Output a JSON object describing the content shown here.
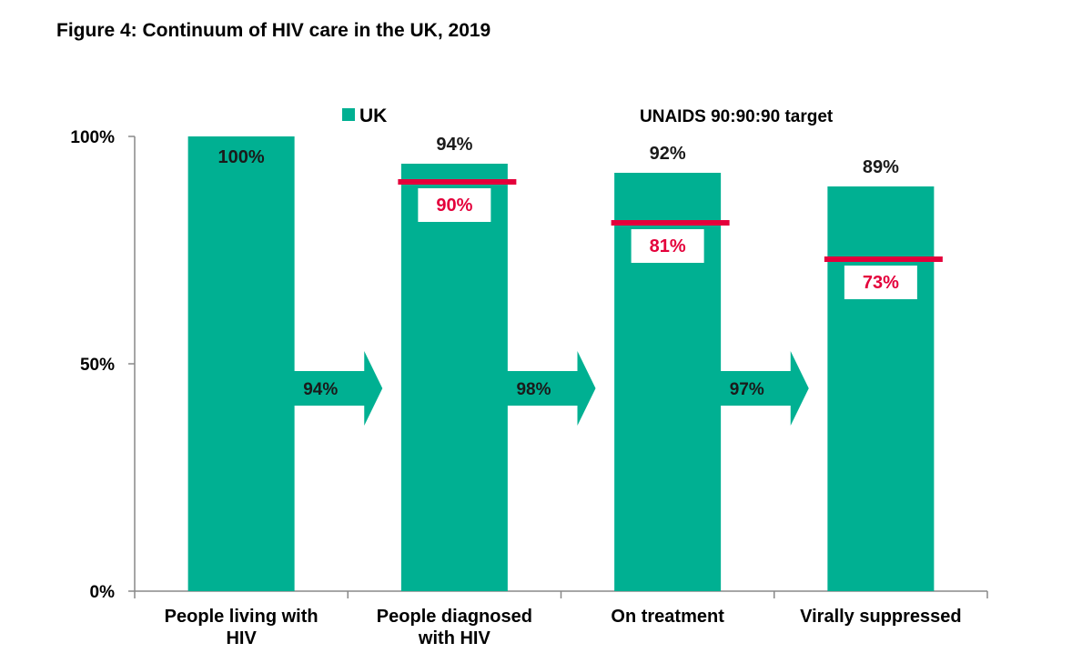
{
  "figure_title": "Figure 4: Continuum of HIV care in the UK, 2019",
  "chart_data": {
    "type": "bar",
    "title": "Figure 4: Continuum of HIV care in the UK, 2019",
    "categories": [
      "People living with HIV",
      "People diagnosed with HIV",
      "On treatment",
      "Virally suppressed"
    ],
    "category_label_lines": [
      [
        "People living with",
        "HIV"
      ],
      [
        "People diagnosed",
        "with HIV"
      ],
      [
        "On treatment"
      ],
      [
        "Virally suppressed"
      ]
    ],
    "series": [
      {
        "name": "UK",
        "values": [
          100,
          94,
          92,
          89
        ],
        "labels": [
          "100%",
          "94%",
          "92%",
          "89%"
        ],
        "color": "#00b092"
      }
    ],
    "target": {
      "name": "UNAIDS 90:90:90 target",
      "values": [
        null,
        90,
        81,
        73
      ],
      "labels": [
        "",
        "90%",
        "81%",
        "73%"
      ],
      "color": "#e4003b"
    },
    "transitions": [
      {
        "between": [
          0,
          1
        ],
        "value": 94,
        "label": "94%"
      },
      {
        "between": [
          1,
          2
        ],
        "value": 98,
        "label": "98%"
      },
      {
        "between": [
          2,
          3
        ],
        "value": 97,
        "label": "97%"
      }
    ],
    "ylim": [
      0,
      100
    ],
    "yticks": [
      0,
      50,
      100
    ],
    "ytick_labels": [
      "0%",
      "50%",
      "100%"
    ],
    "xlabel": "",
    "ylabel": "",
    "grid": false,
    "legend_position": "top"
  }
}
